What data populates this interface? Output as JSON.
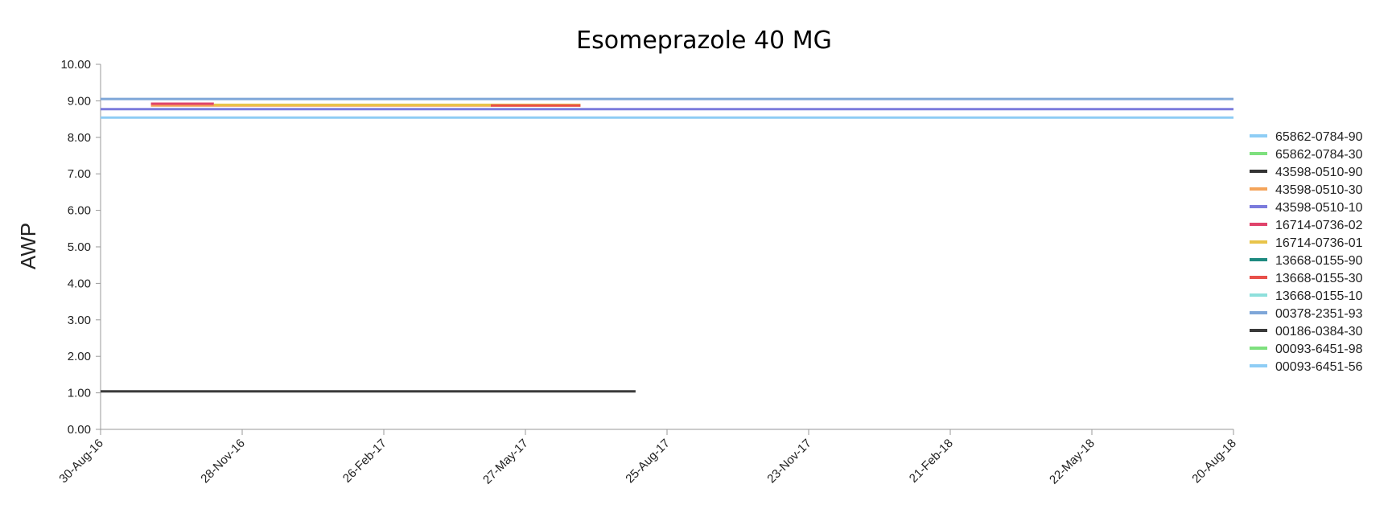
{
  "chart_data": {
    "type": "line",
    "title": "Esomeprazole 40 MG",
    "xlabel": "",
    "ylabel": "AWP",
    "ylim": [
      0,
      10
    ],
    "yticks": [
      "0.00",
      "1.00",
      "2.00",
      "3.00",
      "4.00",
      "5.00",
      "6.00",
      "7.00",
      "8.00",
      "9.00",
      "10.00"
    ],
    "xlim": [
      "2016-08-30",
      "2018-08-20"
    ],
    "xticks": [
      {
        "date": "2016-08-30",
        "label": "30-Aug-16"
      },
      {
        "date": "2016-11-28",
        "label": "28-Nov-16"
      },
      {
        "date": "2017-02-26",
        "label": "26-Feb-17"
      },
      {
        "date": "2017-05-27",
        "label": "27-May-17"
      },
      {
        "date": "2017-08-25",
        "label": "25-Aug-17"
      },
      {
        "date": "2017-11-23",
        "label": "23-Nov-17"
      },
      {
        "date": "2018-02-21",
        "label": "21-Feb-18"
      },
      {
        "date": "2018-05-22",
        "label": "22-May-18"
      },
      {
        "date": "2018-08-20",
        "label": "20-Aug-18"
      }
    ],
    "grid": false,
    "legend_position": "right",
    "series": [
      {
        "name": "65862-0784-90",
        "color": "#8ecdf5",
        "points": []
      },
      {
        "name": "65862-0784-30",
        "color": "#7ee07e",
        "points": []
      },
      {
        "name": "43598-0510-90",
        "color": "#333333",
        "points": []
      },
      {
        "name": "43598-0510-30",
        "color": "#f4a45a",
        "points": [
          {
            "x": "2016-10-01",
            "y": 8.87
          },
          {
            "x": "2017-07-01",
            "y": 8.87
          }
        ]
      },
      {
        "name": "43598-0510-10",
        "color": "#7b7bdc",
        "points": [
          {
            "x": "2016-08-30",
            "y": 8.77
          },
          {
            "x": "2018-08-20",
            "y": 8.77
          }
        ]
      },
      {
        "name": "16714-0736-02",
        "color": "#e0436b",
        "points": [
          {
            "x": "2016-10-01",
            "y": 8.92
          },
          {
            "x": "2016-11-10",
            "y": 8.92
          }
        ]
      },
      {
        "name": "16714-0736-01",
        "color": "#e8c44a",
        "points": [
          {
            "x": "2016-11-10",
            "y": 8.89
          },
          {
            "x": "2017-07-01",
            "y": 8.89
          }
        ]
      },
      {
        "name": "13668-0155-90",
        "color": "#1e8a80",
        "points": []
      },
      {
        "name": "13668-0155-30",
        "color": "#e8504a",
        "points": [
          {
            "x": "2017-05-05",
            "y": 8.87
          },
          {
            "x": "2017-07-01",
            "y": 8.87
          }
        ]
      },
      {
        "name": "13668-0155-10",
        "color": "#8ee0dc",
        "points": []
      },
      {
        "name": "00378-2351-93",
        "color": "#7ea6d8",
        "points": [
          {
            "x": "2016-08-30",
            "y": 9.05
          },
          {
            "x": "2018-08-20",
            "y": 9.05
          }
        ]
      },
      {
        "name": "00186-0384-30",
        "color": "#3a3a3a",
        "points": [
          {
            "x": "2016-08-30",
            "y": 1.04
          },
          {
            "x": "2017-08-05",
            "y": 1.04
          }
        ]
      },
      {
        "name": "00093-6451-98",
        "color": "#7ee07e",
        "points": []
      },
      {
        "name": "00093-6451-56",
        "color": "#8ecdf5",
        "points": [
          {
            "x": "2016-08-30",
            "y": 8.54
          },
          {
            "x": "2018-08-20",
            "y": 8.54
          }
        ]
      }
    ]
  }
}
